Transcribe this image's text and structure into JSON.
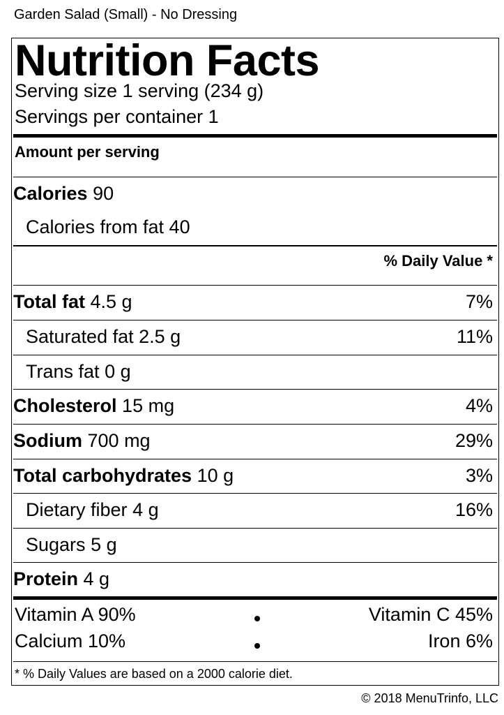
{
  "item_name": "Garden Salad (Small) - No Dressing",
  "title": "Nutrition Facts",
  "serving_size": "Serving size 1 serving (234 g)",
  "servings_per_container": "Servings per container 1",
  "amount_per_serving": "Amount per serving",
  "calories": {
    "label": "Calories",
    "value": "90"
  },
  "calories_from_fat": "Calories from fat 40",
  "daily_value_header": "% Daily Value *",
  "nutrients": {
    "total_fat": {
      "label": "Total fat",
      "amount": "4.5 g",
      "dv": "7%"
    },
    "saturated_fat": {
      "label": "Saturated fat",
      "amount": "2.5 g",
      "dv": "11%"
    },
    "trans_fat": {
      "label": "Trans fat",
      "amount": "0 g",
      "dv": ""
    },
    "cholesterol": {
      "label": "Cholesterol",
      "amount": "15 mg",
      "dv": "4%"
    },
    "sodium": {
      "label": "Sodium",
      "amount": "700 mg",
      "dv": "29%"
    },
    "total_carbohydrates": {
      "label": "Total carbohydrates",
      "amount": "10 g",
      "dv": "3%"
    },
    "dietary_fiber": {
      "label": "Dietary fiber",
      "amount": "4 g",
      "dv": "16%"
    },
    "sugars": {
      "label": "Sugars",
      "amount": "5 g",
      "dv": ""
    },
    "protein": {
      "label": "Protein",
      "amount": "4 g",
      "dv": ""
    }
  },
  "vitamins": {
    "vitamin_a": "Vitamin A 90%",
    "vitamin_c": "Vitamin C 45%",
    "calcium": "Calcium 10%",
    "iron": "Iron 6%"
  },
  "footnote": "* % Daily Values are based on a 2000 calorie diet.",
  "copyright": "© 2018 MenuTrinfo, LLC"
}
